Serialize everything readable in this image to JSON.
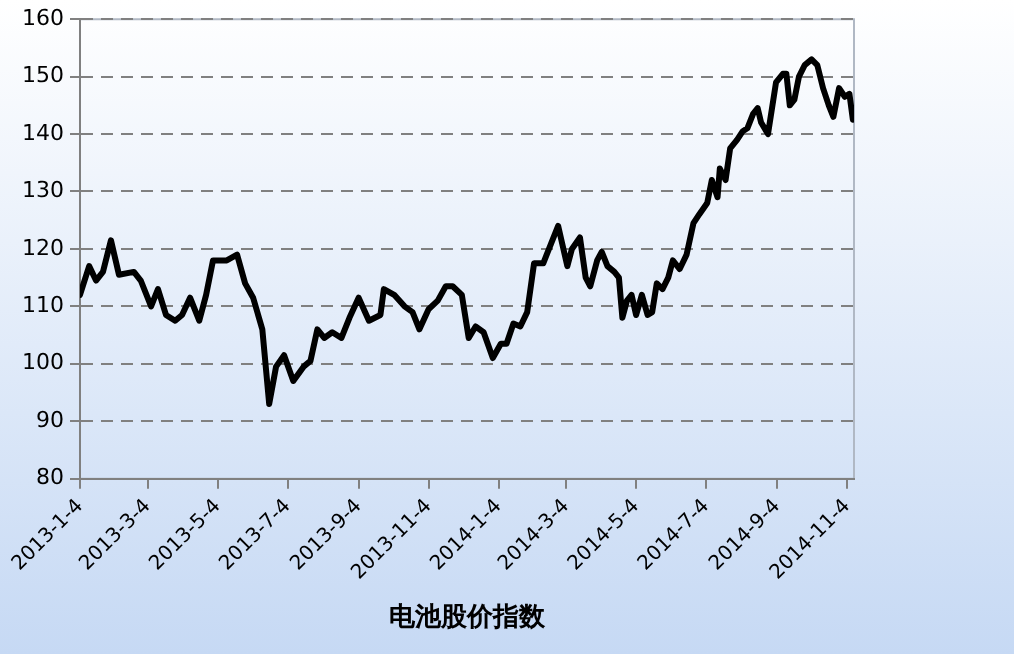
{
  "chart_data": {
    "type": "line",
    "xlabel": "电池股价指数",
    "x": [
      "2013-01-04",
      "2013-01-12",
      "2013-01-18",
      "2013-01-24",
      "2013-01-31",
      "2013-02-07",
      "2013-02-20",
      "2013-02-26",
      "2013-03-07",
      "2013-03-13",
      "2013-03-20",
      "2013-03-28",
      "2013-04-03",
      "2013-04-10",
      "2013-04-18",
      "2013-04-24",
      "2013-04-30",
      "2013-05-12",
      "2013-05-21",
      "2013-05-28",
      "2013-06-04",
      "2013-06-12",
      "2013-06-18",
      "2013-06-24",
      "2013-07-01",
      "2013-07-09",
      "2013-07-18",
      "2013-07-24",
      "2013-07-30",
      "2013-08-05",
      "2013-08-12",
      "2013-08-20",
      "2013-08-27",
      "2013-09-04",
      "2013-09-13",
      "2013-09-23",
      "2013-09-26",
      "2013-10-05",
      "2013-10-14",
      "2013-10-21",
      "2013-10-27",
      "2013-11-04",
      "2013-11-12",
      "2013-11-19",
      "2013-11-25",
      "2013-12-03",
      "2013-12-09",
      "2013-12-15",
      "2013-12-22",
      "2013-12-30",
      "2014-01-06",
      "2014-01-11",
      "2014-01-17",
      "2014-01-23",
      "2014-01-29",
      "2014-02-04",
      "2014-02-12",
      "2014-02-19",
      "2014-02-25",
      "2014-03-05",
      "2014-03-09",
      "2014-03-16",
      "2014-03-21",
      "2014-03-25",
      "2014-03-31",
      "2014-04-04",
      "2014-04-09",
      "2014-04-15",
      "2014-04-19",
      "2014-04-22",
      "2014-04-26",
      "2014-04-30",
      "2014-05-04",
      "2014-05-09",
      "2014-05-14",
      "2014-05-18",
      "2014-05-22",
      "2014-05-27",
      "2014-06-01",
      "2014-06-05",
      "2014-06-11",
      "2014-06-17",
      "2014-06-23",
      "2014-06-28",
      "2014-07-05",
      "2014-07-09",
      "2014-07-14",
      "2014-07-16",
      "2014-07-21",
      "2014-07-25",
      "2014-07-31",
      "2014-08-05",
      "2014-08-09",
      "2014-08-14",
      "2014-08-18",
      "2014-08-21",
      "2014-08-27",
      "2014-09-03",
      "2014-09-09",
      "2014-09-12",
      "2014-09-15",
      "2014-09-19",
      "2014-09-23",
      "2014-09-28",
      "2014-10-04",
      "2014-10-09",
      "2014-10-14",
      "2014-10-19",
      "2014-10-23",
      "2014-10-28",
      "2014-11-02",
      "2014-11-06",
      "2014-11-09"
    ],
    "series": [
      {
        "color": "#000000",
        "values": [
          112,
          117,
          114.5,
          116,
          121.5,
          115.5,
          116,
          114.5,
          110,
          113,
          108.5,
          107.5,
          108.5,
          111.5,
          107.5,
          112,
          118,
          118,
          119,
          114,
          111.5,
          106,
          93,
          99.5,
          101.5,
          97,
          99.5,
          100.5,
          106,
          104.5,
          105.5,
          104.5,
          108,
          111.5,
          107.5,
          108.5,
          113,
          112,
          110,
          109,
          106,
          109.5,
          111,
          113.5,
          113.5,
          112,
          104.5,
          106.5,
          105.5,
          101,
          103.5,
          103.5,
          107,
          106.5,
          109,
          117.5,
          117.5,
          121,
          124,
          117,
          120,
          122,
          115,
          113.5,
          118,
          119.5,
          117,
          116,
          115,
          108,
          111,
          112,
          108.5,
          112,
          108.5,
          109,
          114,
          113,
          115,
          118,
          116.5,
          119,
          124.5,
          126,
          128,
          132,
          129,
          134,
          132,
          137.5,
          139,
          140.5,
          141,
          143.5,
          144.5,
          142,
          140,
          149,
          150.5,
          150.5,
          145,
          146,
          150,
          152,
          153,
          152,
          148,
          145,
          143,
          148,
          146.5,
          147,
          142.5
        ]
      }
    ],
    "xlim": [
      "2013-01-04",
      "2014-11-10"
    ],
    "xticks": [
      {
        "value": "2013-01-04",
        "label": "2013-1-4"
      },
      {
        "value": "2013-03-04",
        "label": "2013-3-4"
      },
      {
        "value": "2013-05-04",
        "label": "2013-5-4"
      },
      {
        "value": "2013-07-04",
        "label": "2013-7-4"
      },
      {
        "value": "2013-09-04",
        "label": "2013-9-4"
      },
      {
        "value": "2013-11-04",
        "label": "2013-11-4"
      },
      {
        "value": "2014-01-04",
        "label": "2014-1-4"
      },
      {
        "value": "2014-03-04",
        "label": "2014-3-4"
      },
      {
        "value": "2014-05-04",
        "label": "2014-5-4"
      },
      {
        "value": "2014-07-04",
        "label": "2014-7-4"
      },
      {
        "value": "2014-09-04",
        "label": "2014-9-4"
      },
      {
        "value": "2014-11-04",
        "label": "2014-11-4"
      }
    ],
    "ylim": [
      80,
      160
    ],
    "yticks": [
      80,
      90,
      100,
      110,
      120,
      130,
      140,
      150,
      160
    ],
    "grid": "y",
    "legend": false,
    "marker": "none",
    "line_style": "solid"
  }
}
